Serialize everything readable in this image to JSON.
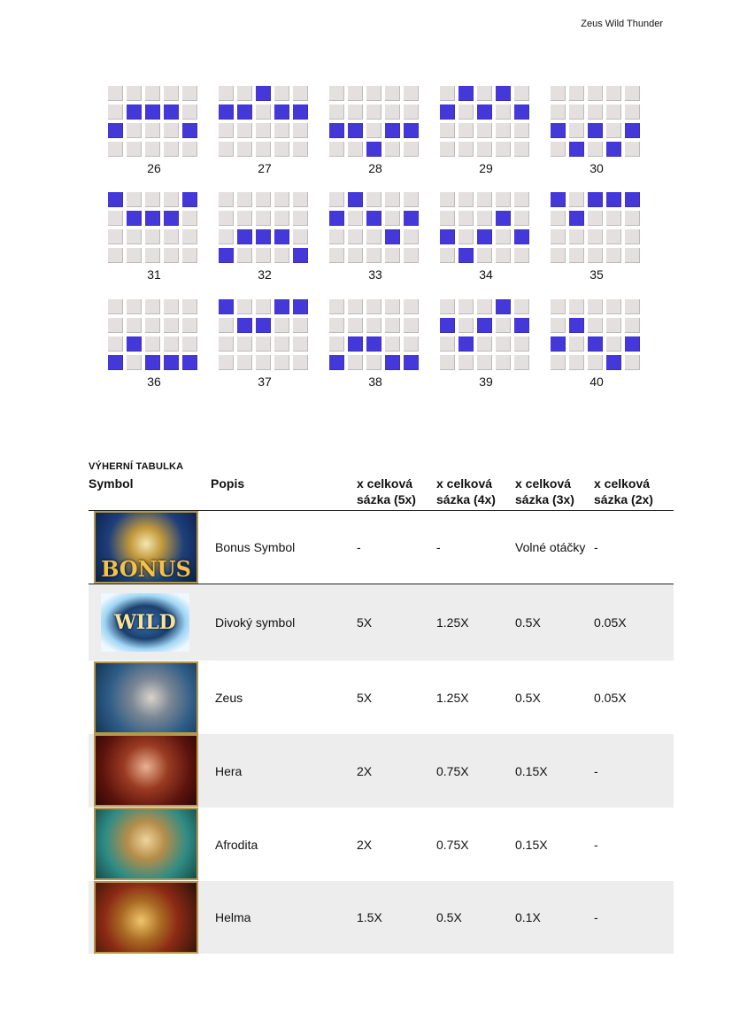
{
  "header": {
    "title": "Zeus Wild Thunder"
  },
  "paylines": {
    "colors": {
      "active": "#4438d9",
      "inactive": "#e4e0e0"
    },
    "items": [
      {
        "number": "26",
        "rows": [
          2,
          1,
          1,
          1,
          2
        ]
      },
      {
        "number": "27",
        "rows": [
          1,
          1,
          0,
          1,
          1
        ]
      },
      {
        "number": "28",
        "rows": [
          2,
          2,
          3,
          2,
          2
        ]
      },
      {
        "number": "29",
        "rows": [
          1,
          0,
          1,
          0,
          1
        ]
      },
      {
        "number": "30",
        "rows": [
          2,
          3,
          2,
          3,
          2
        ]
      },
      {
        "number": "31",
        "rows": [
          0,
          1,
          1,
          1,
          0
        ]
      },
      {
        "number": "32",
        "rows": [
          3,
          2,
          2,
          2,
          3
        ]
      },
      {
        "number": "33",
        "rows": [
          1,
          0,
          1,
          2,
          1
        ]
      },
      {
        "number": "34",
        "rows": [
          2,
          3,
          2,
          1,
          2
        ]
      },
      {
        "number": "35",
        "rows": [
          0,
          1,
          0,
          0,
          0
        ]
      },
      {
        "number": "36",
        "rows": [
          3,
          2,
          3,
          3,
          3
        ]
      },
      {
        "number": "37",
        "rows": [
          0,
          1,
          1,
          0,
          0
        ]
      },
      {
        "number": "38",
        "rows": [
          3,
          2,
          2,
          3,
          3
        ]
      },
      {
        "number": "39",
        "rows": [
          1,
          2,
          1,
          0,
          1
        ]
      },
      {
        "number": "40",
        "rows": [
          2,
          1,
          2,
          3,
          2
        ]
      }
    ]
  },
  "paytable": {
    "title": "Výherní tabulka",
    "headers": {
      "symbol": "Symbol",
      "description": "Popis",
      "x5": [
        "x celková",
        "sázka (5x)"
      ],
      "x4": [
        "x celková",
        "sázka (4x)"
      ],
      "x3": [
        "x celková",
        "sázka (3x)"
      ],
      "x2": [
        "x celková",
        "sázka (2x)"
      ]
    },
    "rows": [
      {
        "description": "Bonus Symbol",
        "x5": "-",
        "x4": "-",
        "x3": "Volné otáčky",
        "x2": "-",
        "logo_text": "BONUS"
      },
      {
        "description": "Divoký symbol",
        "x5": "5X",
        "x4": "1.25X",
        "x3": "0.5X",
        "x2": "0.05X",
        "logo_text": "WILD"
      },
      {
        "description": "Zeus",
        "x5": "5X",
        "x4": "1.25X",
        "x3": "0.5X",
        "x2": "0.05X"
      },
      {
        "description": "Hera",
        "x5": "2X",
        "x4": "0.75X",
        "x3": "0.15X",
        "x2": "-"
      },
      {
        "description": "Afrodita",
        "x5": "2X",
        "x4": "0.75X",
        "x3": "0.15X",
        "x2": "-"
      },
      {
        "description": "Helma",
        "x5": "1.5X",
        "x4": "0.5X",
        "x3": "0.1X",
        "x2": "-"
      }
    ]
  }
}
